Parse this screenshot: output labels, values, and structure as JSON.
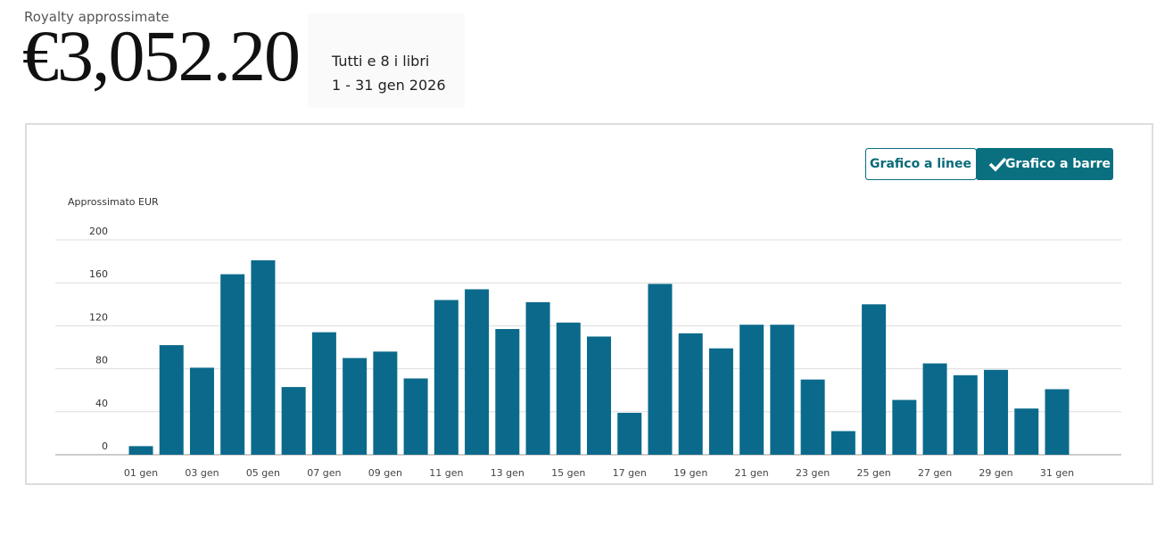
{
  "header": {
    "label": "Royalty approssimate",
    "amount": "€3,052.20",
    "scope": "Tutti e 8 i libri",
    "period": "1 - 31 gen 2026"
  },
  "toggle": {
    "line": "Grafico a linee",
    "bar": "Grafico a barre"
  },
  "chart_data": {
    "type": "bar",
    "y_label": "Approssimato EUR",
    "categories": [
      "01 gen",
      null,
      "03 gen",
      null,
      "05 gen",
      null,
      "07 gen",
      null,
      "09 gen",
      null,
      "11 gen",
      null,
      "13 gen",
      null,
      "15 gen",
      null,
      "17 gen",
      null,
      "19 gen",
      null,
      "21 gen",
      null,
      "23 gen",
      null,
      "25 gen",
      null,
      "27 gen",
      null,
      "29 gen",
      null,
      "31 gen"
    ],
    "values": [
      8,
      102,
      81,
      168,
      181,
      63,
      114,
      90,
      96,
      71,
      144,
      154,
      117,
      142,
      123,
      110,
      39,
      159,
      113,
      99,
      121,
      121,
      70,
      22,
      140,
      51,
      85,
      74,
      79,
      43,
      61
    ],
    "color": "#0b6a8b",
    "ylim": [
      0,
      200
    ],
    "yticks": [
      0,
      40,
      80,
      120,
      160,
      200
    ],
    "grid": true
  }
}
